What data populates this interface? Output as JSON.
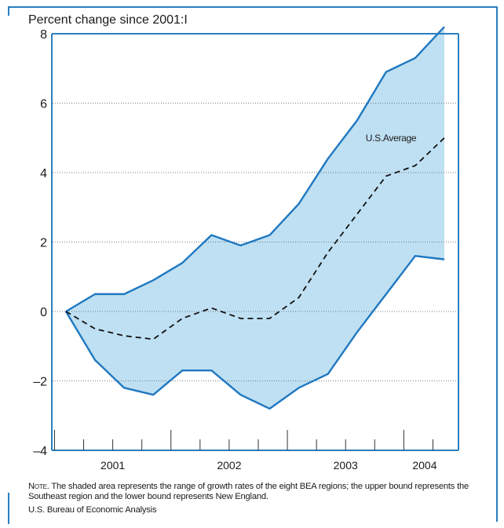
{
  "chart_data": {
    "type": "area",
    "ylabel": "Percent change since 2001:I",
    "ylim": [
      -4,
      8
    ],
    "yticks": [
      -4,
      -2,
      0,
      2,
      4,
      6,
      8
    ],
    "yticklabels": [
      "–4",
      "–2",
      "0",
      "2",
      "4",
      "6",
      "8"
    ],
    "grid": "horizontal-dotted",
    "x_quarters": [
      "2001:I",
      "2001:II",
      "2001:III",
      "2001:IV",
      "2002:I",
      "2002:II",
      "2002:III",
      "2002:IV",
      "2003:I",
      "2003:II",
      "2003:III",
      "2003:IV",
      "2004:I",
      "2004:II"
    ],
    "year_labels": [
      "2001",
      "2002",
      "2003",
      "2004"
    ],
    "series": [
      {
        "name": "Upper bound (Southeast)",
        "values": [
          0,
          0.5,
          0.5,
          0.9,
          1.4,
          2.2,
          1.9,
          2.2,
          3.1,
          4.4,
          5.5,
          6.9,
          7.3,
          8.2
        ]
      },
      {
        "name": "U.S. Average",
        "values": [
          0,
          -0.5,
          -0.7,
          -0.8,
          -0.2,
          0.1,
          -0.2,
          -0.2,
          0.4,
          1.7,
          2.8,
          3.9,
          4.2,
          5.0
        ]
      },
      {
        "name": "Lower bound (New England)",
        "values": [
          0,
          -1.4,
          -2.2,
          -2.4,
          -1.7,
          -1.7,
          -2.4,
          -2.8,
          -2.2,
          -1.8,
          -0.6,
          0.5,
          1.6,
          1.5
        ]
      }
    ],
    "annotation": "U.S.Average",
    "fill_color": "#bfe0f2",
    "line_color": "#1f78c1"
  },
  "note": {
    "prefix": "Note.",
    "text": " The shaded area represents the range of growth rates of the eight BEA regions; the upper bound represents the Southeast region and the lower bound represents New England."
  },
  "source": "U.S. Bureau of Economic Analysis"
}
